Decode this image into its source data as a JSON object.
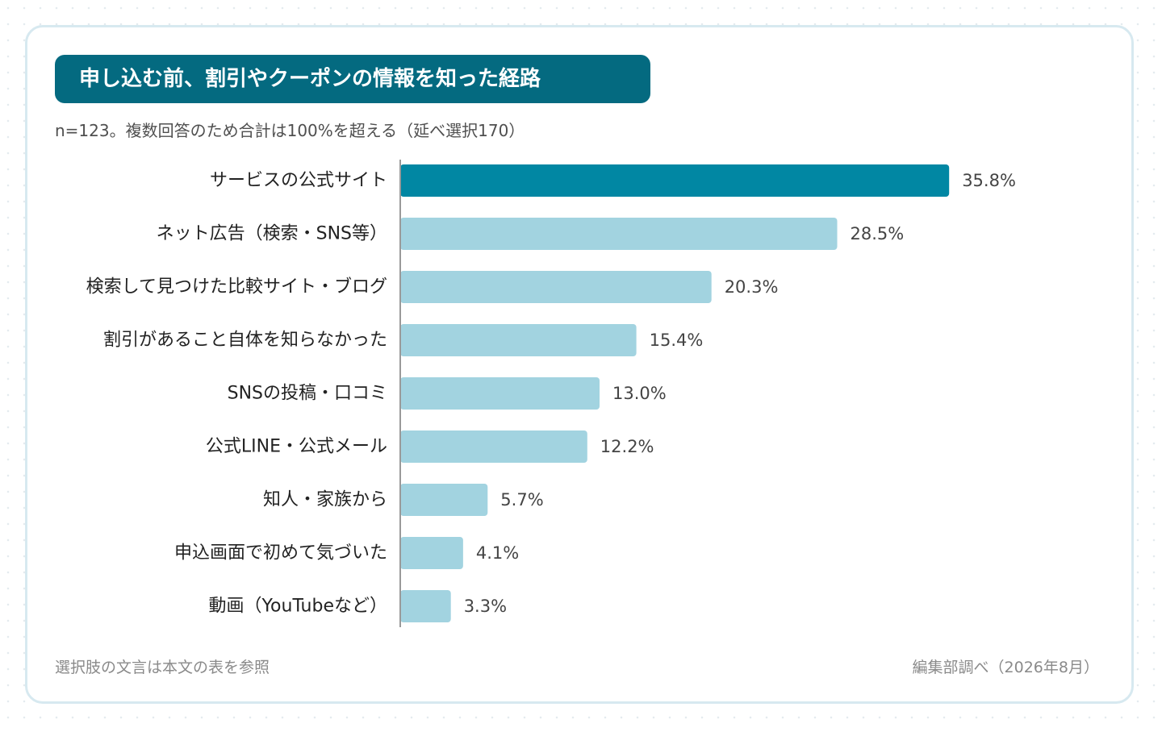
{
  "header": {
    "title": "申し込む前、割引やクーポンの情報を知った経路",
    "subtitle": "n=123。複数回答のため合計は100%を超える（延べ選択170）"
  },
  "footer": {
    "note": "選択肢の文言は本文の表を参照",
    "source": "編集部調べ（2026年8月）"
  },
  "colors": {
    "highlight": "#0187a3",
    "bar": "#a2d3e0",
    "title_bg": "#046a80",
    "axis": "#9a9a9a"
  },
  "chart_data": {
    "type": "bar",
    "orientation": "horizontal",
    "unit": "%",
    "xlim": [
      0,
      40
    ],
    "grid": false,
    "categories": [
      "サービスの公式サイト",
      "ネット広告（検索・SNS等）",
      "検索して見つけた比較サイト・ブログ",
      "割引があること自体を知らなかった",
      "SNSの投稿・口コミ",
      "公式LINE・公式メール",
      "知人・家族から",
      "申込画面で初めて気づいた",
      "動画（YouTubeなど）"
    ],
    "values": [
      35.8,
      28.5,
      20.3,
      15.4,
      13.0,
      12.2,
      5.7,
      4.1,
      3.3
    ],
    "value_labels": [
      "35.8%",
      "28.5%",
      "20.3%",
      "15.4%",
      "13.0%",
      "12.2%",
      "5.7%",
      "4.1%",
      "3.3%"
    ],
    "highlight_index": 0
  }
}
